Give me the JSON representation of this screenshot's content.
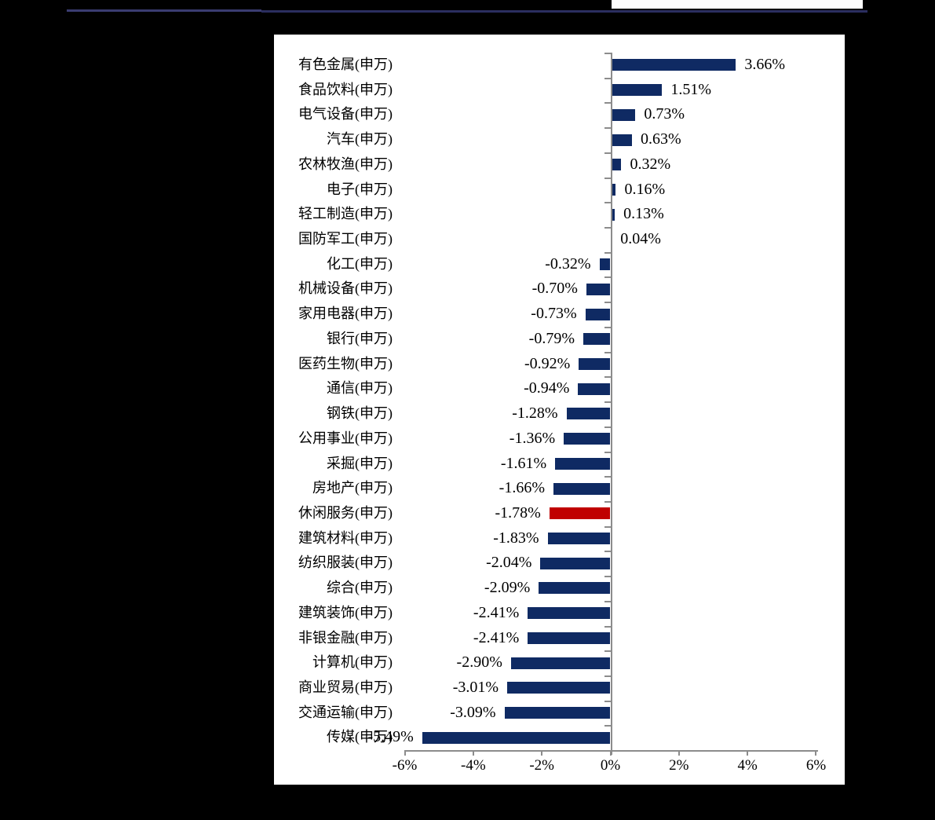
{
  "page": {
    "background": "#000000"
  },
  "header": {
    "rule_color_left": "#3a3c71",
    "rule_color_right": "#2b2e5f",
    "logo_strip_color": "#fdfdfd",
    "logo_swoosh_color": "#1e3a6e",
    "logo_accent_color": "#c05a5a"
  },
  "chart_data": {
    "type": "bar",
    "orientation": "horizontal",
    "title": "",
    "xlabel": "",
    "ylabel": "",
    "categories": [
      "有色金属(申万)",
      "食品饮料(申万)",
      "电气设备(申万)",
      "汽车(申万)",
      "农林牧渔(申万)",
      "电子(申万)",
      "轻工制造(申万)",
      "国防军工(申万)",
      "化工(申万)",
      "机械设备(申万)",
      "家用电器(申万)",
      "银行(申万)",
      "医药生物(申万)",
      "通信(申万)",
      "钢铁(申万)",
      "公用事业(申万)",
      "采掘(申万)",
      "房地产(申万)",
      "休闲服务(申万)",
      "建筑材料(申万)",
      "纺织服装(申万)",
      "综合(申万)",
      "建筑装饰(申万)",
      "非银金融(申万)",
      "计算机(申万)",
      "商业贸易(申万)",
      "交通运输(申万)",
      "传媒(申万)"
    ],
    "values": [
      3.66,
      1.51,
      0.73,
      0.63,
      0.32,
      0.16,
      0.13,
      0.04,
      -0.32,
      -0.7,
      -0.73,
      -0.79,
      -0.92,
      -0.94,
      -1.28,
      -1.36,
      -1.61,
      -1.66,
      -1.78,
      -1.83,
      -2.04,
      -2.09,
      -2.41,
      -2.41,
      -2.9,
      -3.01,
      -3.09,
      -5.49
    ],
    "value_labels": [
      "3.66%",
      "1.51%",
      "0.73%",
      "0.63%",
      "0.32%",
      "0.16%",
      "0.13%",
      "0.04%",
      "-0.32%",
      "-0.70%",
      "-0.73%",
      "-0.79%",
      "-0.92%",
      "-0.94%",
      "-1.28%",
      "-1.36%",
      "-1.61%",
      "-1.66%",
      "-1.78%",
      "-1.83%",
      "-2.04%",
      "-2.09%",
      "-2.41%",
      "-2.41%",
      "-2.90%",
      "-3.01%",
      "-3.09%",
      "-5.49%"
    ],
    "highlight_index": 18,
    "bar_color": "#0f2a63",
    "highlight_color": "#c00000",
    "x_ticks": [
      "-6%",
      "-4%",
      "-2%",
      "0%",
      "2%",
      "4%",
      "6%"
    ],
    "x_tick_values": [
      -6,
      -4,
      -2,
      0,
      2,
      4,
      6
    ],
    "xlim": [
      -6,
      6
    ],
    "grid": false,
    "legend": false,
    "axis_color": "#8c8c8c",
    "plot_bg": "#ffffff",
    "label_color": "#000000"
  }
}
